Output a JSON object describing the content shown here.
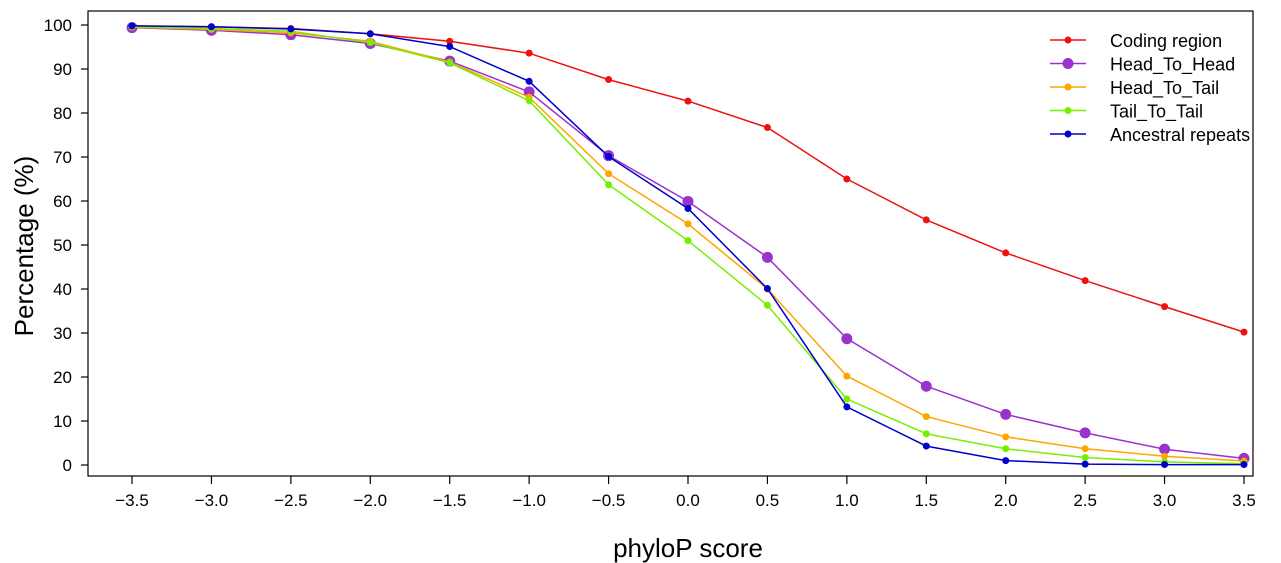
{
  "chart_data": {
    "type": "line",
    "title": "",
    "xlabel": "phyloP score",
    "ylabel": "Percentage (%)",
    "x": [
      -3.5,
      -3.0,
      -2.5,
      -2.0,
      -1.5,
      -1.0,
      -0.5,
      0.0,
      0.5,
      1.0,
      1.5,
      2.0,
      2.5,
      3.0,
      3.5
    ],
    "x_tick_labels": [
      "−3.5",
      "−3.0",
      "−2.5",
      "−2.0",
      "−1.5",
      "−1.0",
      "−0.5",
      "0.0",
      "0.5",
      "1.0",
      "1.5",
      "2.0",
      "2.5",
      "3.0",
      "3.5"
    ],
    "y_ticks": [
      0,
      10,
      20,
      30,
      40,
      50,
      60,
      70,
      80,
      90,
      100
    ],
    "xlim": [
      -3.5,
      3.5
    ],
    "ylim": [
      0,
      100
    ],
    "grid": false,
    "legend_position": "top-right",
    "series": [
      {
        "name": "Coding region",
        "color": "#ee1111",
        "marker": "small",
        "values": [
          99.8,
          99.6,
          99.2,
          98.0,
          96.3,
          93.6,
          87.6,
          82.7,
          76.7,
          65.0,
          55.7,
          48.2,
          41.9,
          36.0,
          30.2
        ]
      },
      {
        "name": "Head_To_Head",
        "color": "#9933cc",
        "marker": "large",
        "values": [
          99.4,
          98.8,
          97.8,
          95.8,
          91.8,
          84.8,
          70.3,
          59.9,
          47.2,
          28.7,
          17.9,
          11.5,
          7.3,
          3.6,
          1.5
        ]
      },
      {
        "name": "Head_To_Tail",
        "color": "#ffa500",
        "marker": "small",
        "values": [
          99.5,
          99.0,
          98.2,
          96.3,
          91.6,
          83.6,
          66.2,
          54.8,
          40.0,
          20.2,
          11.0,
          6.4,
          3.7,
          2.0,
          0.9
        ]
      },
      {
        "name": "Tail_To_Tail",
        "color": "#77ee00",
        "marker": "small",
        "values": [
          99.6,
          99.2,
          98.6,
          96.0,
          91.4,
          82.8,
          63.7,
          51.0,
          36.3,
          15.0,
          7.1,
          3.7,
          1.7,
          0.7,
          0.3
        ]
      },
      {
        "name": "Ancestral repeats",
        "color": "#0000cc",
        "marker": "small",
        "values": [
          99.8,
          99.6,
          99.1,
          98.0,
          95.1,
          87.2,
          70.1,
          58.3,
          40.1,
          13.2,
          4.3,
          1.0,
          0.2,
          0.1,
          0.1
        ]
      }
    ]
  }
}
